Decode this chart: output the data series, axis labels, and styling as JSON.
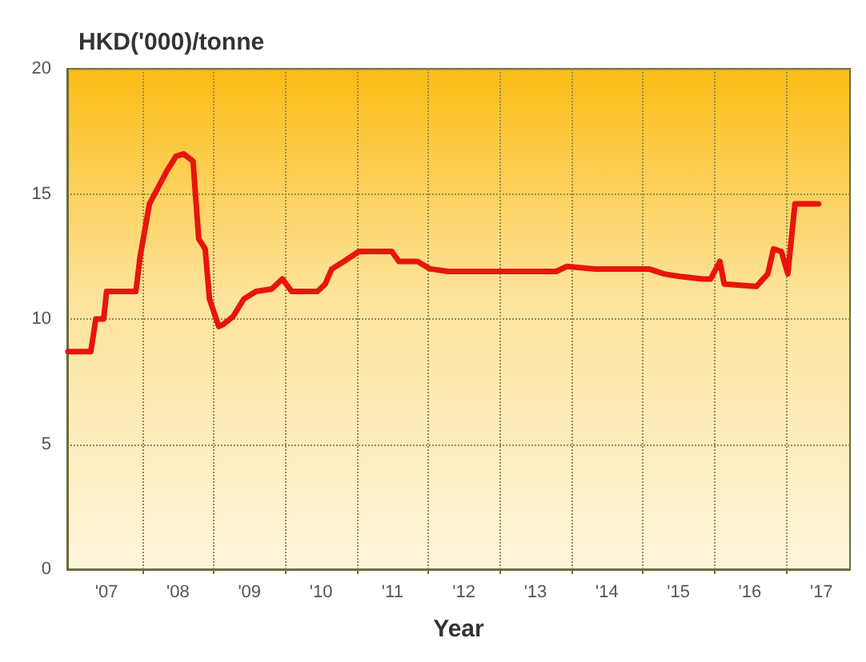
{
  "chart_data": {
    "type": "line",
    "ylabel": "HKD('000)/tonne",
    "xlabel": "Year",
    "x": [
      2006.46,
      2006.78,
      2006.85,
      2006.96,
      2007.0,
      2007.41,
      2007.47,
      2007.6,
      2007.73,
      2007.84,
      2007.97,
      2008.08,
      2008.21,
      2008.29,
      2008.38,
      2008.44,
      2008.57,
      2008.64,
      2008.77,
      2008.92,
      2009.09,
      2009.31,
      2009.46,
      2009.59,
      2009.95,
      2010.06,
      2010.15,
      2010.32,
      2010.53,
      2010.99,
      2011.09,
      2011.35,
      2011.53,
      2011.78,
      2012.22,
      2013.29,
      2013.44,
      2013.83,
      2014.59,
      2014.8,
      2015.02,
      2015.34,
      2015.45,
      2015.58,
      2015.64,
      2016.09,
      2016.25,
      2016.33,
      2016.44,
      2016.53,
      2016.63,
      2016.96
    ],
    "series": [
      {
        "color": "#e8150c",
        "values": [
          8.7,
          8.7,
          10.0,
          10.0,
          11.1,
          11.1,
          12.5,
          14.6,
          15.3,
          15.9,
          16.5,
          16.6,
          16.3,
          13.2,
          12.8,
          10.8,
          9.7,
          9.8,
          10.1,
          10.8,
          11.1,
          11.2,
          11.6,
          11.1,
          11.1,
          11.4,
          12.0,
          12.3,
          12.7,
          12.7,
          12.3,
          12.3,
          12.0,
          11.9,
          11.9,
          11.9,
          12.1,
          12.0,
          12.0,
          11.8,
          11.7,
          11.6,
          11.6,
          12.3,
          11.4,
          11.3,
          11.8,
          12.8,
          12.7,
          11.8,
          14.6,
          14.6
        ]
      }
    ],
    "xlim": [
      2006.45,
      2017.4
    ],
    "xticks": [
      {
        "value": 2007,
        "label": "'07"
      },
      {
        "value": 2007.5,
        "label": null
      },
      {
        "value": 2008,
        "label": "'08"
      },
      {
        "value": 2008.5,
        "label": null
      },
      {
        "value": 2009,
        "label": "'09"
      },
      {
        "value": 2009.5,
        "label": null
      },
      {
        "value": 2010,
        "label": "'10"
      },
      {
        "value": 2010.5,
        "label": null
      },
      {
        "value": 2011,
        "label": "'11"
      },
      {
        "value": 2011.5,
        "label": null
      },
      {
        "value": 2012,
        "label": "'12"
      },
      {
        "value": 2012.5,
        "label": null
      },
      {
        "value": 2013,
        "label": "'13"
      },
      {
        "value": 2013.5,
        "label": null
      },
      {
        "value": 2014,
        "label": "'14"
      },
      {
        "value": 2014.5,
        "label": null
      },
      {
        "value": 2015,
        "label": "'15"
      },
      {
        "value": 2015.5,
        "label": null
      },
      {
        "value": 2016,
        "label": "'16"
      },
      {
        "value": 2016.5,
        "label": null
      },
      {
        "value": 2017,
        "label": "'17"
      }
    ],
    "ylim": [
      0,
      20
    ],
    "yticks": [
      0,
      5,
      10,
      15,
      20
    ],
    "grid": true,
    "marker": "none",
    "line_style": "solid"
  }
}
